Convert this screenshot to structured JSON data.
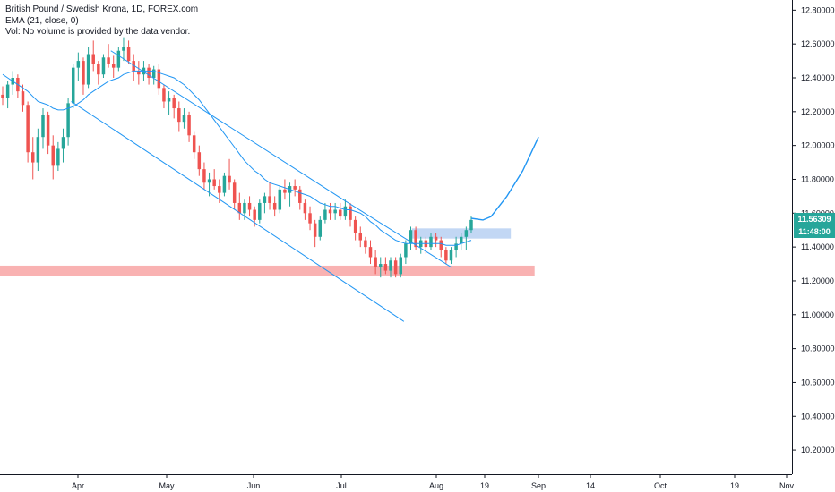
{
  "legend": {
    "title": "British Pound / Swedish Krona, 1D, FOREX.com",
    "ema": "EMA (21, close, 0)",
    "vol": "Vol: No volume is provided by the data vendor."
  },
  "price_tags": {
    "last_price": "11.56309",
    "countdown": "11:48:00"
  },
  "colors": {
    "up": "#26a69a",
    "down": "#ef5350",
    "ema": "#2196f3",
    "drawing": "#2196f3",
    "support_zone": "#f8a5a5",
    "resistance_zone": "#bbd3f3",
    "axis_line": "#131722",
    "last_price_bg": "#26a69a",
    "countdown_bg": "#26a69a"
  },
  "chart_data": {
    "type": "candlestick",
    "title": "British Pound / Swedish Krona, 1D, FOREX.com",
    "y_ticks": [
      "12.80000",
      "12.60000",
      "12.40000",
      "12.20000",
      "12.00000",
      "11.80000",
      "11.60000",
      "11.40000",
      "11.20000",
      "11.00000",
      "10.80000",
      "10.60000",
      "10.40000",
      "10.20000"
    ],
    "x_ticks": [
      "Apr",
      "May",
      "Jun",
      "Jul",
      "Aug",
      "19",
      "Sep",
      "14",
      "Oct",
      "19",
      "Nov"
    ],
    "ylim": [
      10.1,
      12.86
    ],
    "price_scale": "right",
    "grid": false,
    "candles": [
      [
        12.3,
        12.35,
        12.24,
        12.28
      ],
      [
        12.28,
        12.38,
        12.22,
        12.36
      ],
      [
        12.36,
        12.44,
        12.3,
        12.4
      ],
      [
        12.4,
        12.42,
        12.28,
        12.32
      ],
      [
        12.32,
        12.36,
        12.2,
        12.24
      ],
      [
        12.24,
        12.26,
        11.9,
        11.96
      ],
      [
        11.96,
        12.05,
        11.8,
        11.9
      ],
      [
        11.9,
        12.1,
        11.85,
        12.05
      ],
      [
        12.05,
        12.22,
        11.98,
        12.18
      ],
      [
        12.18,
        12.2,
        11.95,
        12.0
      ],
      [
        12.0,
        12.06,
        11.8,
        11.88
      ],
      [
        11.88,
        12.02,
        11.85,
        11.98
      ],
      [
        11.98,
        12.1,
        11.9,
        12.05
      ],
      [
        12.05,
        12.28,
        12.0,
        12.25
      ],
      [
        12.25,
        12.48,
        12.22,
        12.46
      ],
      [
        12.46,
        12.55,
        12.38,
        12.5
      ],
      [
        12.5,
        12.52,
        12.3,
        12.36
      ],
      [
        12.36,
        12.58,
        12.34,
        12.54
      ],
      [
        12.54,
        12.62,
        12.44,
        12.48
      ],
      [
        12.48,
        12.5,
        12.36,
        12.42
      ],
      [
        12.42,
        12.54,
        12.4,
        12.52
      ],
      [
        12.52,
        12.6,
        12.46,
        12.48
      ],
      [
        12.48,
        12.53,
        12.4,
        12.46
      ],
      [
        12.46,
        12.58,
        12.44,
        12.56
      ],
      [
        12.56,
        12.64,
        12.5,
        12.58
      ],
      [
        12.58,
        12.62,
        12.48,
        12.5
      ],
      [
        12.5,
        12.54,
        12.38,
        12.44
      ],
      [
        12.44,
        12.5,
        12.36,
        12.42
      ],
      [
        12.42,
        12.5,
        12.38,
        12.46
      ],
      [
        12.46,
        12.48,
        12.36,
        12.4
      ],
      [
        12.4,
        12.47,
        12.36,
        12.45
      ],
      [
        12.45,
        12.48,
        12.3,
        12.34
      ],
      [
        12.34,
        12.36,
        12.22,
        12.26
      ],
      [
        12.26,
        12.32,
        12.18,
        12.28
      ],
      [
        12.28,
        12.3,
        12.16,
        12.22
      ],
      [
        12.22,
        12.26,
        12.08,
        12.14
      ],
      [
        12.14,
        12.22,
        12.1,
        12.18
      ],
      [
        12.18,
        12.2,
        12.02,
        12.06
      ],
      [
        12.06,
        12.08,
        11.92,
        11.96
      ],
      [
        11.96,
        12.0,
        11.82,
        11.86
      ],
      [
        11.86,
        11.9,
        11.74,
        11.78
      ],
      [
        11.78,
        11.84,
        11.7,
        11.8
      ],
      [
        11.8,
        11.86,
        11.74,
        11.76
      ],
      [
        11.76,
        11.8,
        11.66,
        11.72
      ],
      [
        11.72,
        11.84,
        11.7,
        11.82
      ],
      [
        11.82,
        11.92,
        11.74,
        11.78
      ],
      [
        11.78,
        11.8,
        11.62,
        11.66
      ],
      [
        11.66,
        11.72,
        11.56,
        11.6
      ],
      [
        11.6,
        11.68,
        11.56,
        11.66
      ],
      [
        11.66,
        11.7,
        11.58,
        11.62
      ],
      [
        11.62,
        11.64,
        11.52,
        11.56
      ],
      [
        11.56,
        11.68,
        11.54,
        11.66
      ],
      [
        11.66,
        11.72,
        11.6,
        11.7
      ],
      [
        11.7,
        11.78,
        11.62,
        11.66
      ],
      [
        11.66,
        11.7,
        11.58,
        11.62
      ],
      [
        11.62,
        11.76,
        11.6,
        11.74
      ],
      [
        11.74,
        11.8,
        11.68,
        11.72
      ],
      [
        11.72,
        11.78,
        11.64,
        11.76
      ],
      [
        11.76,
        11.8,
        11.7,
        11.74
      ],
      [
        11.74,
        11.76,
        11.62,
        11.66
      ],
      [
        11.66,
        11.68,
        11.56,
        11.6
      ],
      [
        11.6,
        11.64,
        11.5,
        11.54
      ],
      [
        11.54,
        11.56,
        11.4,
        11.46
      ],
      [
        11.46,
        11.58,
        11.44,
        11.56
      ],
      [
        11.56,
        11.66,
        11.54,
        11.62
      ],
      [
        11.62,
        11.66,
        11.56,
        11.6
      ],
      [
        11.6,
        11.66,
        11.56,
        11.62
      ],
      [
        11.62,
        11.66,
        11.56,
        11.58
      ],
      [
        11.58,
        11.68,
        11.56,
        11.64
      ],
      [
        11.64,
        11.66,
        11.52,
        11.56
      ],
      [
        11.56,
        11.58,
        11.44,
        11.48
      ],
      [
        11.48,
        11.52,
        11.4,
        11.44
      ],
      [
        11.44,
        11.46,
        11.36,
        11.4
      ],
      [
        11.4,
        11.44,
        11.3,
        11.34
      ],
      [
        11.34,
        11.38,
        11.24,
        11.28
      ],
      [
        11.28,
        11.34,
        11.22,
        11.3
      ],
      [
        11.3,
        11.34,
        11.24,
        11.26
      ],
      [
        11.26,
        11.34,
        11.22,
        11.32
      ],
      [
        11.32,
        11.34,
        11.22,
        11.24
      ],
      [
        11.24,
        11.36,
        11.22,
        11.34
      ],
      [
        11.34,
        11.44,
        11.3,
        11.42
      ],
      [
        11.42,
        11.52,
        11.38,
        11.5
      ],
      [
        11.5,
        11.52,
        11.38,
        11.4
      ],
      [
        11.4,
        11.46,
        11.36,
        11.44
      ],
      [
        11.44,
        11.46,
        11.36,
        11.4
      ],
      [
        11.4,
        11.48,
        11.38,
        11.46
      ],
      [
        11.46,
        11.48,
        11.4,
        11.44
      ],
      [
        11.44,
        11.46,
        11.34,
        11.38
      ],
      [
        11.38,
        11.4,
        11.3,
        11.32
      ],
      [
        11.32,
        11.4,
        11.3,
        11.38
      ],
      [
        11.38,
        11.46,
        11.34,
        11.42
      ],
      [
        11.42,
        11.48,
        11.38,
        11.46
      ],
      [
        11.46,
        11.52,
        11.38,
        11.5
      ],
      [
        11.5,
        11.58,
        11.48,
        11.56
      ]
    ],
    "ema": [
      [
        12.42,
        12.4,
        12.38,
        12.36,
        12.34,
        12.32,
        12.29,
        12.26,
        12.25,
        12.24,
        12.22,
        12.21,
        12.21,
        12.22,
        12.23,
        12.25,
        12.27,
        12.3,
        12.32,
        12.34,
        12.36,
        12.38,
        12.39,
        12.4,
        12.42,
        12.43,
        12.44,
        12.44,
        12.44,
        12.44,
        12.44,
        12.43,
        12.42,
        12.41,
        12.4,
        12.38,
        12.36,
        12.33,
        12.3,
        12.27,
        12.23,
        12.19,
        12.15,
        12.11,
        12.07,
        12.03,
        11.99,
        11.95,
        11.91,
        11.88,
        11.85,
        11.83,
        11.8,
        11.78,
        11.77,
        11.76,
        11.75,
        11.74,
        11.73,
        11.72,
        11.71,
        11.7,
        11.68,
        11.66,
        11.65,
        11.64,
        11.64,
        11.63,
        11.62,
        11.62,
        11.61,
        11.6,
        11.58,
        11.55,
        11.53,
        11.5,
        11.48,
        11.46,
        11.44,
        11.43,
        11.42,
        11.42,
        11.42,
        11.42,
        11.42,
        11.42,
        11.42,
        11.42,
        11.41,
        11.41,
        11.41,
        11.42,
        11.43,
        11.44
      ]
    ],
    "trend_lines": [
      {
        "from": [
          0.14,
          12.56
        ],
        "to": [
          0.44,
          11.66
        ]
      },
      {
        "from": [
          0.09,
          12.26
        ],
        "to": [
          0.51,
          10.96
        ]
      },
      {
        "from": [
          0.44,
          11.66
        ],
        "to": [
          0.57,
          11.28
        ]
      }
    ],
    "projection": [
      [
        0.595,
        11.57
      ],
      [
        0.61,
        11.56
      ],
      [
        0.62,
        11.58
      ],
      [
        0.64,
        11.7
      ],
      [
        0.66,
        11.85
      ],
      [
        0.67,
        11.95
      ],
      [
        0.68,
        12.05
      ]
    ],
    "support_zone": {
      "from": 0.0,
      "to": 0.675,
      "low": 11.23,
      "high": 11.29
    },
    "resistance_zone": {
      "from": 0.52,
      "to": 0.645,
      "low": 11.45,
      "high": 11.51
    }
  }
}
